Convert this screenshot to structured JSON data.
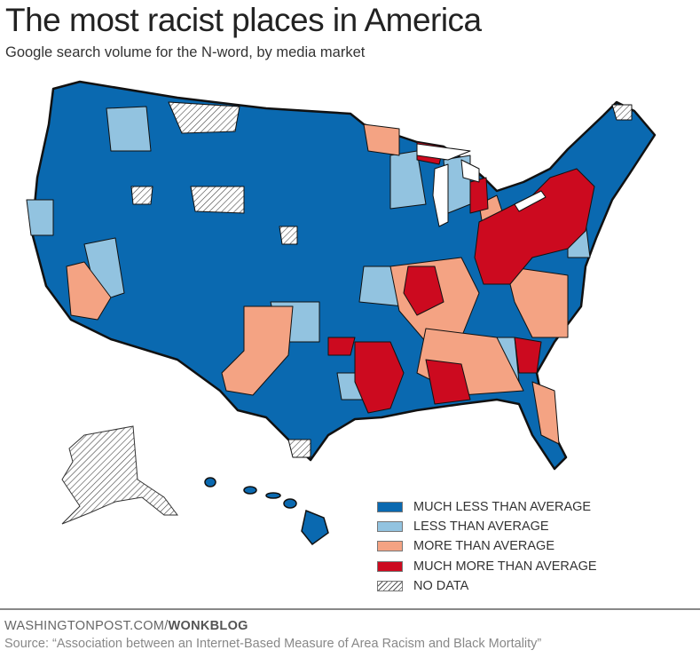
{
  "header": {
    "title": "The most racist places in America",
    "subtitle": "Google search volume for the N-word, by media market"
  },
  "legend": [
    {
      "label": "MUCH LESS THAN AVERAGE",
      "color": "#0a69b0"
    },
    {
      "label": "LESS THAN AVERAGE",
      "color": "#92c3e0"
    },
    {
      "label": "MORE THAN AVERAGE",
      "color": "#f4a383"
    },
    {
      "label": "MUCH MORE THAN AVERAGE",
      "color": "#cc0a1f"
    },
    {
      "label": "NO DATA",
      "color": "hatched"
    }
  ],
  "footer": {
    "site_prefix": "WASHINGTONPOST.COM/",
    "site_section": "WONKBLOG",
    "source": "Source: “Association between an Internet-Based Measure of Area Racism and Black Mortality”"
  }
}
